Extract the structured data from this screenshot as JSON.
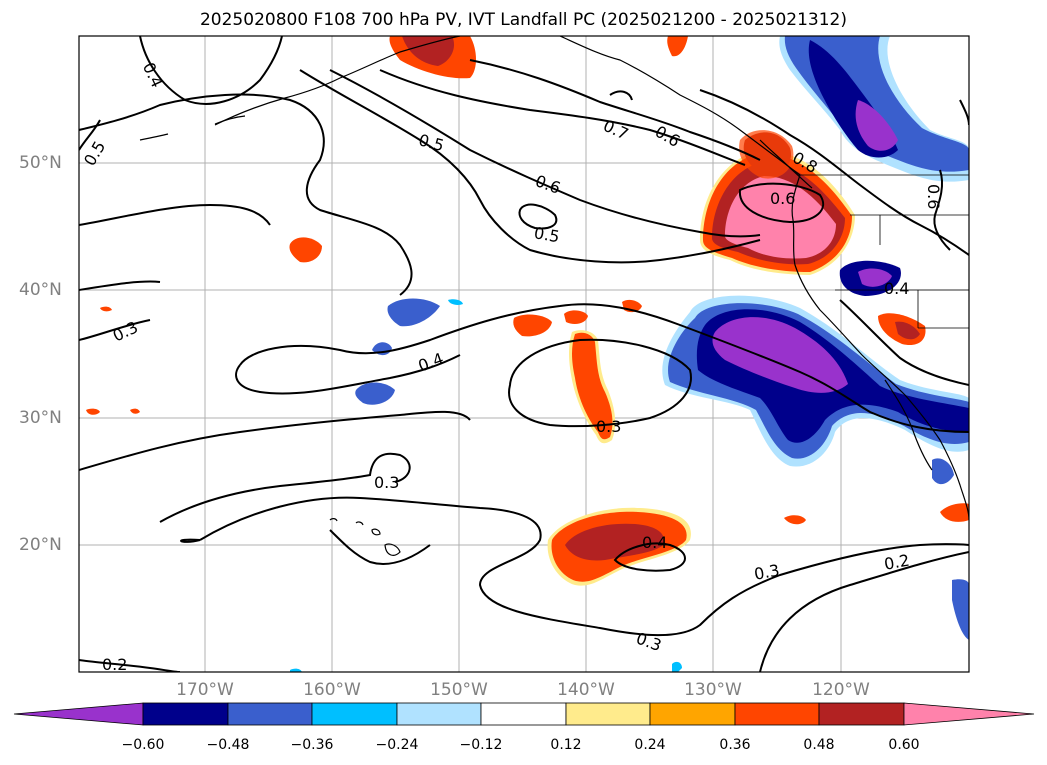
{
  "title": "2025020800 F108 700 hPa PV, IVT Landfall PC (2025021200 - 2025021312)",
  "map": {
    "lat_labels": [
      "50°N",
      "40°N",
      "30°N",
      "20°N"
    ],
    "lon_labels": [
      "170°W",
      "160°W",
      "150°W",
      "140°W",
      "130°W",
      "120°W"
    ],
    "contour_labels": [
      "0.4",
      "0.5",
      "0.5",
      "0.6",
      "0.5",
      "0.7",
      "0.6",
      "0.8",
      "0.6",
      "0.6",
      "0.4",
      "0.3",
      "0.4",
      "0.3",
      "0.3",
      "0.4",
      "0.3",
      "0.2",
      "0.3",
      "0.2"
    ],
    "colors": {
      "purple": "#9932cc",
      "navy": "#00008b",
      "royal_blue": "#3a5fcd",
      "deep_sky_blue": "#00bfff",
      "light_sky_blue": "#b0e2ff",
      "light_yellow": "#ffeb8c",
      "orange": "#ffa500",
      "orange_red": "#ff4500",
      "firebrick": "#b22222",
      "pink": "#ff82ab",
      "gridline": "#b0b0b0",
      "contour": "#000000"
    }
  },
  "colorbar": {
    "tick_labels": [
      "−0.60",
      "−0.48",
      "−0.36",
      "−0.24",
      "−0.12",
      "0.12",
      "0.24",
      "0.36",
      "0.48",
      "0.60"
    ],
    "segment_colors": [
      "#9932cc",
      "#00008b",
      "#3a5fcd",
      "#00bfff",
      "#b0e2ff",
      "#ffffff",
      "#ffeb8c",
      "#ffa500",
      "#ff4500",
      "#b22222",
      "#ff82ab"
    ]
  }
}
